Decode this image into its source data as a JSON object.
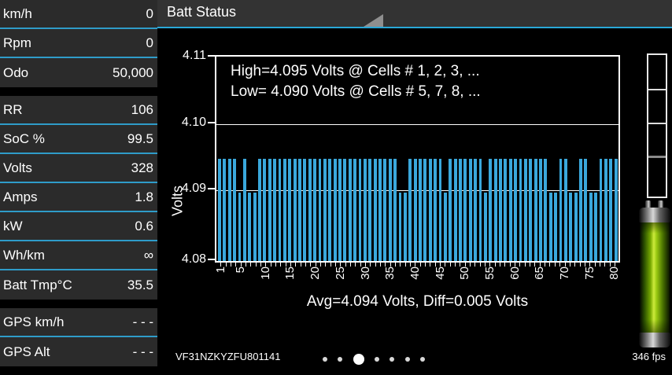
{
  "colors": {
    "accent_blue": "#29a8d8",
    "sidebar_divider_blue": "#2f9cc9",
    "bar_blue": "#3aa8dc",
    "row_bg": "#2b2b2b",
    "topbar_bg": "#333333",
    "battery_green": "#9bcb12"
  },
  "sidebar": {
    "groups": [
      {
        "rows": [
          {
            "label": "km/h",
            "value": "0"
          },
          {
            "label": "Rpm",
            "value": "0"
          },
          {
            "label": "Odo",
            "value": "50,000"
          }
        ]
      },
      {
        "rows": [
          {
            "label": "RR",
            "value": "106"
          },
          {
            "label": "SoC %",
            "value": "99.5"
          },
          {
            "label": "Volts",
            "value": "328"
          },
          {
            "label": "Amps",
            "value": "1.8"
          },
          {
            "label": "kW",
            "value": "0.6"
          },
          {
            "label": "Wh/km",
            "value": "∞"
          },
          {
            "label": "Batt Tmp°C",
            "value": "35.5"
          }
        ]
      },
      {
        "rows": [
          {
            "label": "GPS km/h",
            "value": "- - -"
          },
          {
            "label": "GPS Alt",
            "value": "- - -"
          }
        ]
      }
    ]
  },
  "header": {
    "title": "Batt Status",
    "spinner_icon": "dropdown-triangle"
  },
  "chart": {
    "high_label": "High=4.095 Volts @ Cells # 1, 2, 3,  ...",
    "low_label": "Low= 4.090 Volts @ Cells # 5, 7, 8,  ...",
    "avg_label": "Avg=4.094 Volts, Diff=0.005 Volts",
    "ylabel": "Volts"
  },
  "chart_data": {
    "type": "bar",
    "title": "Batt Status",
    "xlabel": "",
    "ylabel": "Volts",
    "ylim": [
      4.08,
      4.11
    ],
    "yticks": [
      "4.11",
      "4.10",
      "4.09",
      "4.08"
    ],
    "gridlines": [
      4.1,
      4.09
    ],
    "xtick_labels": [
      "1",
      "5",
      "10",
      "15",
      "20",
      "25",
      "30",
      "35",
      "40",
      "45",
      "50",
      "55",
      "60",
      "65",
      "70",
      "75",
      "80"
    ],
    "xtick_cells": [
      1,
      5,
      10,
      15,
      20,
      25,
      30,
      35,
      40,
      45,
      50,
      55,
      60,
      65,
      70,
      75,
      80
    ],
    "high_value": 4.095,
    "low_value": 4.09,
    "avg_value": 4.094,
    "diff_value": 0.005,
    "categories": [
      1,
      2,
      3,
      4,
      5,
      6,
      7,
      8,
      9,
      10,
      11,
      12,
      13,
      14,
      15,
      16,
      17,
      18,
      19,
      20,
      21,
      22,
      23,
      24,
      25,
      26,
      27,
      28,
      29,
      30,
      31,
      32,
      33,
      34,
      35,
      36,
      37,
      38,
      39,
      40,
      41,
      42,
      43,
      44,
      45,
      46,
      47,
      48,
      49,
      50,
      51,
      52,
      53,
      54,
      55,
      56,
      57,
      58,
      59,
      60,
      61,
      62,
      63,
      64,
      65,
      66,
      67,
      68,
      69,
      70,
      71,
      72,
      73,
      74,
      75,
      76,
      77,
      78,
      79,
      80
    ],
    "values": [
      4.095,
      4.095,
      4.095,
      4.095,
      4.09,
      4.095,
      4.09,
      4.09,
      4.095,
      4.095,
      4.095,
      4.095,
      4.095,
      4.095,
      4.095,
      4.095,
      4.095,
      4.095,
      4.095,
      4.095,
      4.095,
      4.095,
      4.095,
      4.095,
      4.095,
      4.095,
      4.095,
      4.095,
      4.095,
      4.095,
      4.095,
      4.095,
      4.095,
      4.095,
      4.095,
      4.095,
      4.09,
      4.09,
      4.095,
      4.095,
      4.095,
      4.095,
      4.095,
      4.095,
      4.095,
      4.09,
      4.095,
      4.095,
      4.095,
      4.095,
      4.095,
      4.095,
      4.095,
      4.09,
      4.095,
      4.095,
      4.095,
      4.095,
      4.095,
      4.095,
      4.095,
      4.095,
      4.095,
      4.095,
      4.095,
      4.095,
      4.09,
      4.09,
      4.095,
      4.095,
      4.09,
      4.09,
      4.095,
      4.095,
      4.09,
      4.09,
      4.095,
      4.095,
      4.095,
      4.095
    ]
  },
  "footer": {
    "vin": "VF31NZKYZFU801141",
    "fps": "346 fps",
    "page_dots": {
      "count": 7,
      "active_index": 2
    }
  },
  "right_panel": {
    "gauge_icon": "segmented-vertical-gauge",
    "battery_icon": "green-battery-full"
  }
}
